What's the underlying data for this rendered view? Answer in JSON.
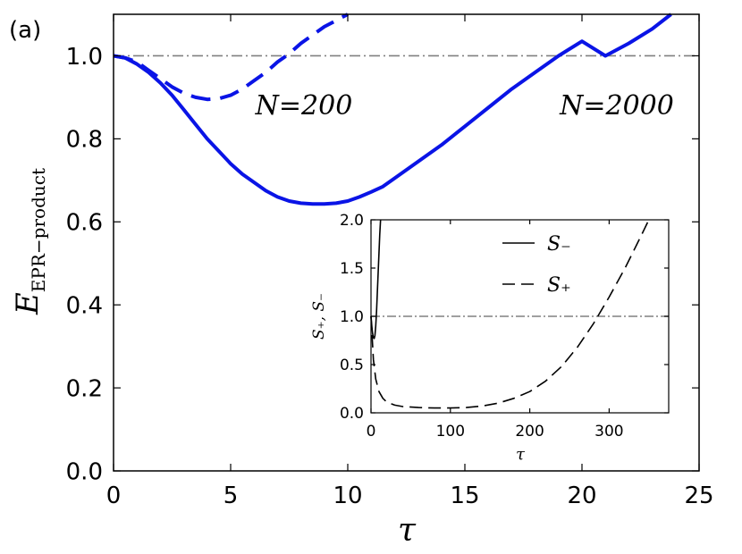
{
  "panel_label": "(a)",
  "chart_data": [
    {
      "type": "line",
      "xlabel": "τ",
      "ylabel_main": "E",
      "ylabel_sub": "EPR−product",
      "xlim": [
        0,
        25
      ],
      "ylim": [
        0,
        1.1
      ],
      "xticks": [
        0,
        5,
        10,
        15,
        20,
        25
      ],
      "xtick_labels": [
        "0",
        "5",
        "10",
        "15",
        "20",
        "25"
      ],
      "yticks": [
        0.0,
        0.2,
        0.4,
        0.6,
        0.8,
        1.0
      ],
      "ytick_labels": [
        "0.0",
        "0.2",
        "0.4",
        "0.6",
        "0.8",
        "1.0"
      ],
      "reference_line": {
        "y": 1.0,
        "style": "dashdot",
        "color": "#808080"
      },
      "annotations": [
        {
          "text": "N=200",
          "near_series": "N=200"
        },
        {
          "text": "N=2000",
          "near_series": "N=2000"
        }
      ],
      "series": [
        {
          "name": "N=2000",
          "style": "solid",
          "color": "#0a14e6",
          "x": [
            0,
            0.5,
            1,
            1.5,
            2,
            2.5,
            3,
            3.5,
            4,
            4.5,
            5,
            5.5,
            6,
            6.5,
            7,
            7.5,
            8,
            8.5,
            9,
            9.5,
            10,
            10.5,
            11,
            11.5,
            12,
            13,
            14,
            15,
            16,
            17,
            18,
            19,
            20,
            21,
            22,
            23,
            23.8
          ],
          "y": [
            1.0,
            0.995,
            0.98,
            0.96,
            0.935,
            0.905,
            0.87,
            0.835,
            0.8,
            0.77,
            0.74,
            0.715,
            0.695,
            0.675,
            0.66,
            0.65,
            0.645,
            0.643,
            0.643,
            0.645,
            0.65,
            0.66,
            0.672,
            0.685,
            0.705,
            0.745,
            0.785,
            0.83,
            0.875,
            0.92,
            0.96,
            1.0,
            1.035,
            1.0,
            1.03,
            1.065,
            1.1
          ]
        },
        {
          "name": "N=200",
          "style": "dashed",
          "color": "#0a14e6",
          "x": [
            0,
            0.5,
            1,
            1.5,
            2,
            2.5,
            3,
            3.5,
            4,
            4.5,
            5,
            5.5,
            6,
            6.5,
            7,
            7.5,
            8,
            8.5,
            9,
            9.5,
            10
          ],
          "y": [
            1.0,
            0.995,
            0.985,
            0.965,
            0.945,
            0.925,
            0.91,
            0.9,
            0.895,
            0.897,
            0.905,
            0.92,
            0.94,
            0.96,
            0.985,
            1.005,
            1.03,
            1.05,
            1.07,
            1.085,
            1.1
          ]
        }
      ]
    },
    {
      "type": "line",
      "role": "inset",
      "xlabel": "τ",
      "ylabel": "S₊, S₋",
      "xlim": [
        0,
        375
      ],
      "ylim": [
        0,
        2.0
      ],
      "xticks": [
        0,
        100,
        200,
        300
      ],
      "xtick_labels": [
        "0",
        "100",
        "200",
        "300"
      ],
      "yticks": [
        0.0,
        0.5,
        1.0,
        1.5,
        2.0
      ],
      "ytick_labels": [
        "0.0",
        "0.5",
        "1.0",
        "1.5",
        "2.0"
      ],
      "reference_line": {
        "y": 1.0,
        "style": "dashdot",
        "color": "#808080"
      },
      "legend": {
        "placement": "upper-right",
        "entries": [
          "S₋",
          "S₊"
        ]
      },
      "series": [
        {
          "name": "S₋",
          "style": "solid",
          "color": "#000000",
          "x": [
            0,
            1,
            2,
            3,
            4,
            5,
            6,
            7,
            8,
            9,
            10,
            11,
            12
          ],
          "y": [
            1.0,
            0.9,
            0.82,
            0.78,
            0.77,
            0.8,
            0.9,
            1.05,
            1.25,
            1.45,
            1.65,
            1.85,
            2.0
          ]
        },
        {
          "name": "S₊",
          "style": "dashed",
          "color": "#000000",
          "x": [
            0,
            3,
            6,
            10,
            15,
            20,
            30,
            40,
            60,
            80,
            100,
            120,
            140,
            160,
            180,
            200,
            220,
            240,
            260,
            280,
            300,
            320,
            340,
            350
          ],
          "y": [
            1.0,
            0.55,
            0.35,
            0.22,
            0.15,
            0.11,
            0.08,
            0.065,
            0.055,
            0.05,
            0.05,
            0.055,
            0.07,
            0.1,
            0.15,
            0.22,
            0.33,
            0.48,
            0.68,
            0.92,
            1.2,
            1.5,
            1.83,
            2.0
          ]
        }
      ]
    }
  ]
}
